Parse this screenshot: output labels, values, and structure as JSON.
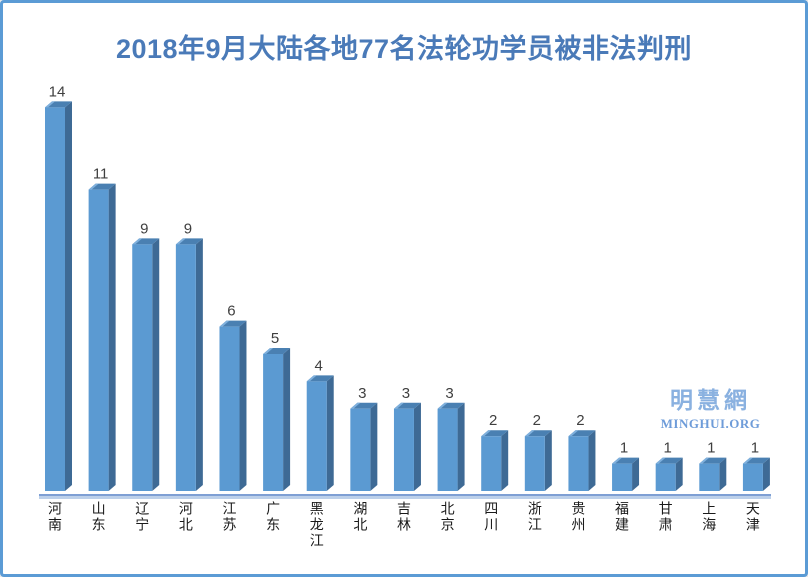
{
  "title": "2018年9月大陆各地77名法轮功学员被非法判刑",
  "watermark": {
    "cjk": "明慧網",
    "latin": "MINGHUI.ORG"
  },
  "colors": {
    "frame_border": "#5b9bd5",
    "title": "#4a7ab8",
    "bar_front": "#5b9ad2",
    "bar_side": "#3e6a95",
    "bar_top": "#4a80b2",
    "bar_top_highlight": "#7fb0dd",
    "axis_line_dark": "#7e9fd4",
    "axis_line_light": "#bcd0ea",
    "value_label": "#3f3f3f",
    "category_label": "#1a1a1a",
    "watermark": "#8ab1e0"
  },
  "chart_data": {
    "type": "bar",
    "style": "3d-column",
    "title": "2018年9月大陆各地77名法轮功学员被非法判刑",
    "categories": [
      "河南",
      "山东",
      "辽宁",
      "河北",
      "江苏",
      "广东",
      "黑龙江",
      "湖北",
      "吉林",
      "北京",
      "四川",
      "浙江",
      "贵州",
      "福建",
      "甘肃",
      "上海",
      "天津"
    ],
    "values": [
      14,
      11,
      9,
      9,
      6,
      5,
      4,
      3,
      3,
      3,
      2,
      2,
      2,
      1,
      1,
      1,
      1
    ],
    "total": 77,
    "xlabel": "",
    "ylabel": "",
    "ylim": [
      0,
      14
    ],
    "grid": false,
    "legend": false,
    "value_labels_shown": true
  }
}
